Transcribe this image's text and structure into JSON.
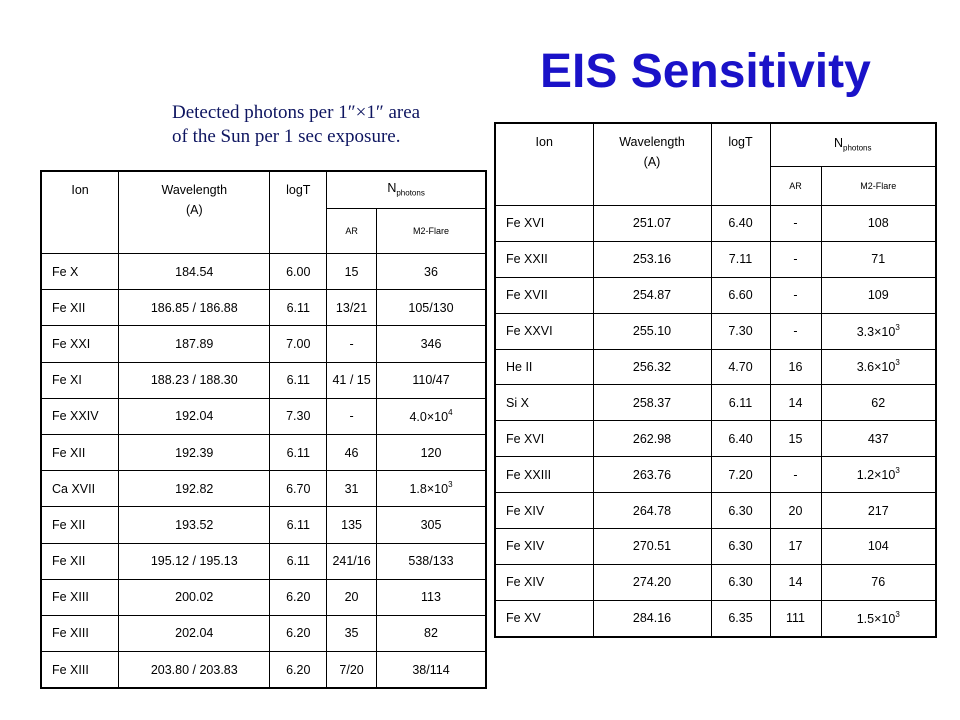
{
  "title": "EIS Sensitivity",
  "caption": {
    "line1": "Detected photons per 1″×1″ area",
    "line2": "of the Sun per 1 sec exposure."
  },
  "headers": {
    "ion": "Ion",
    "wavelength": "Wavelength",
    "wavelength_unit": "(A)",
    "logT": "logT",
    "nphotons_base": "N",
    "nphotons_sub": "photons",
    "ar": "AR",
    "flare": "M2-Flare"
  },
  "table_left": [
    {
      "ion": "Fe X",
      "wavelength": "184.54",
      "logT": "6.00",
      "ar": "15",
      "flare": "36"
    },
    {
      "ion": "Fe XII",
      "wavelength": "186.85 / 186.88",
      "logT": "6.11",
      "ar": "13/21",
      "flare": "105/130"
    },
    {
      "ion": "Fe XXI",
      "wavelength": "187.89",
      "logT": "7.00",
      "ar": "-",
      "flare": "346"
    },
    {
      "ion": "Fe XI",
      "wavelength": "188.23 / 188.30",
      "logT": "6.11",
      "ar": "41 / 15",
      "flare": "110/47"
    },
    {
      "ion": "Fe XXIV",
      "wavelength": "192.04",
      "logT": "7.30",
      "ar": "-",
      "flare": "4.0×10",
      "flare_exp": "4"
    },
    {
      "ion": "Fe XII",
      "wavelength": "192.39",
      "logT": "6.11",
      "ar": "46",
      "flare": "120"
    },
    {
      "ion": "Ca XVII",
      "wavelength": "192.82",
      "logT": "6.70",
      "ar": "31",
      "flare": "1.8×10",
      "flare_exp": "3"
    },
    {
      "ion": "Fe XII",
      "wavelength": "193.52",
      "logT": "6.11",
      "ar": "135",
      "flare": "305"
    },
    {
      "ion": "Fe XII",
      "wavelength": "195.12 / 195.13",
      "logT": "6.11",
      "ar": "241/16",
      "flare": "538/133"
    },
    {
      "ion": "Fe XIII",
      "wavelength": "200.02",
      "logT": "6.20",
      "ar": "20",
      "flare": "113"
    },
    {
      "ion": "Fe XIII",
      "wavelength": "202.04",
      "logT": "6.20",
      "ar": "35",
      "flare": "82"
    },
    {
      "ion": "Fe XIII",
      "wavelength": "203.80 / 203.83",
      "logT": "6.20",
      "ar": "7/20",
      "flare": "38/114"
    }
  ],
  "table_right": [
    {
      "ion": "Fe XVI",
      "wavelength": "251.07",
      "logT": "6.40",
      "ar": "-",
      "flare": "108"
    },
    {
      "ion": "Fe XXII",
      "wavelength": "253.16",
      "logT": "7.11",
      "ar": "-",
      "flare": "71"
    },
    {
      "ion": "Fe XVII",
      "wavelength": "254.87",
      "logT": "6.60",
      "ar": "-",
      "flare": "109"
    },
    {
      "ion": "Fe XXVI",
      "wavelength": "255.10",
      "logT": "7.30",
      "ar": "-",
      "flare": "3.3×10",
      "flare_exp": "3"
    },
    {
      "ion": "He II",
      "wavelength": "256.32",
      "logT": "4.70",
      "ar": "16",
      "flare": "3.6×10",
      "flare_exp": "3"
    },
    {
      "ion": "Si X",
      "wavelength": "258.37",
      "logT": "6.11",
      "ar": "14",
      "flare": "62"
    },
    {
      "ion": "Fe XVI",
      "wavelength": "262.98",
      "logT": "6.40",
      "ar": "15",
      "flare": "437"
    },
    {
      "ion": "Fe XXIII",
      "wavelength": "263.76",
      "logT": "7.20",
      "ar": "-",
      "flare": "1.2×10",
      "flare_exp": "3"
    },
    {
      "ion": "Fe XIV",
      "wavelength": "264.78",
      "logT": "6.30",
      "ar": "20",
      "flare": "217"
    },
    {
      "ion": "Fe XIV",
      "wavelength": "270.51",
      "logT": "6.30",
      "ar": "17",
      "flare": "104"
    },
    {
      "ion": "Fe XIV",
      "wavelength": "274.20",
      "logT": "6.30",
      "ar": "14",
      "flare": "76"
    },
    {
      "ion": "Fe XV",
      "wavelength": "284.16",
      "logT": "6.35",
      "ar": "111",
      "flare": "1.5×10",
      "flare_exp": "3"
    }
  ],
  "colors": {
    "title": "#1a12c8",
    "caption": "#0e1560"
  }
}
